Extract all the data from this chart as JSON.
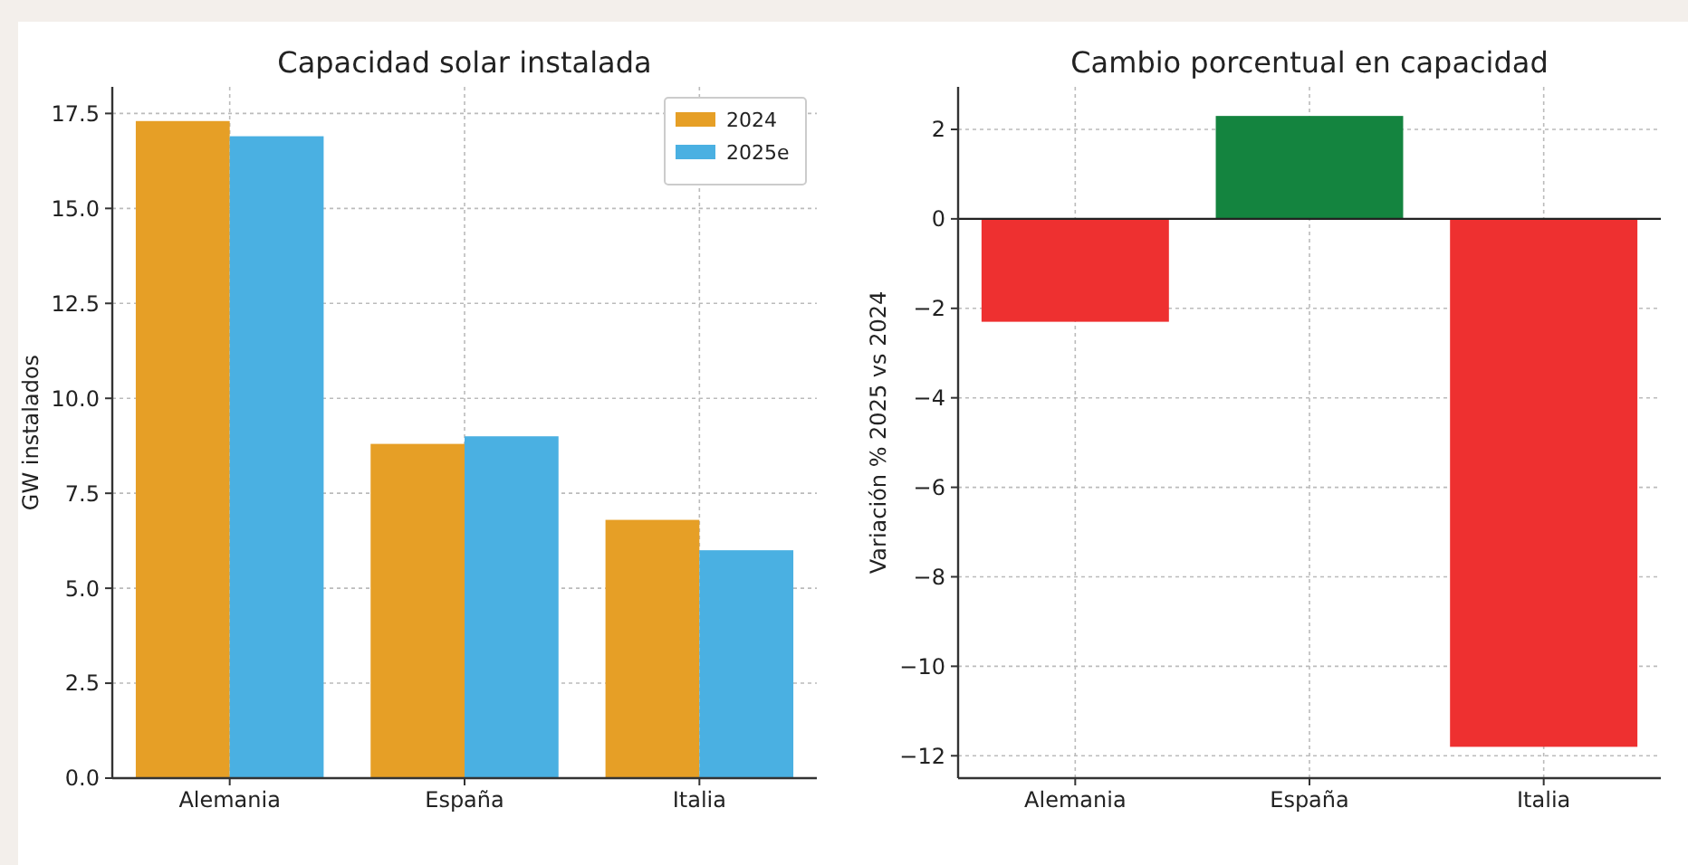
{
  "chart_data": [
    {
      "type": "bar",
      "title": "Capacidad solar instalada",
      "ylabel": "GW instalados",
      "categories": [
        "Alemania",
        "España",
        "Italia"
      ],
      "series": [
        {
          "name": "2024",
          "color": "#e69f26",
          "values": [
            17.3,
            8.8,
            6.8
          ]
        },
        {
          "name": "2025e",
          "color": "#4ab0e2",
          "values": [
            16.9,
            9.0,
            6.0
          ]
        }
      ],
      "ylim": [
        0,
        18.2
      ],
      "yticks": [
        {
          "value": 0,
          "label": "0.0"
        },
        2.5,
        {
          "value": 5,
          "label": "5.0"
        },
        7.5,
        {
          "value": 10,
          "label": "10.0"
        },
        12.5,
        {
          "value": 15,
          "label": "15.0"
        },
        17.5
      ],
      "grid": true,
      "legend": "top right"
    },
    {
      "type": "bar",
      "title": "Cambio porcentual en capacidad",
      "ylabel": "Variación % 2025 vs 2024",
      "categories": [
        "Alemania",
        "España",
        "Italia"
      ],
      "values": [
        -2.3,
        2.3,
        -11.8
      ],
      "colors": [
        "#ee3030",
        "#14843f",
        "#ee3030"
      ],
      "ylim": [
        -12.5,
        2.95
      ],
      "yticks": [
        {
          "value": -12,
          "label": "−12"
        },
        {
          "value": -10,
          "label": "−10"
        },
        {
          "value": -8,
          "label": "−8"
        },
        {
          "value": -6,
          "label": "−6"
        },
        {
          "value": -4,
          "label": "−4"
        },
        {
          "value": -2,
          "label": "−2"
        },
        0,
        2
      ],
      "grid": true,
      "ref_lines": [
        {
          "axis": "y",
          "value": 0,
          "color": "#222222"
        }
      ]
    }
  ]
}
